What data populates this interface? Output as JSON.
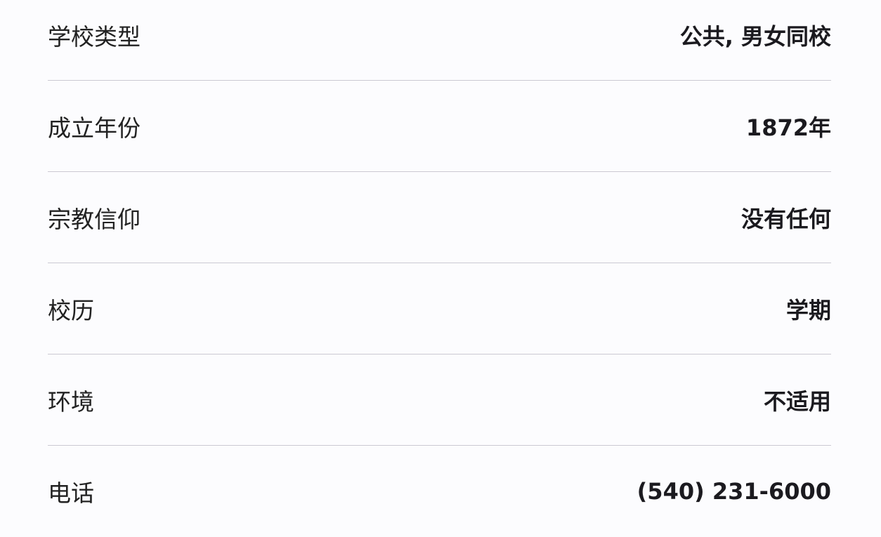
{
  "rows": [
    {
      "label": "学校类型",
      "value": "公共, 男女同校"
    },
    {
      "label": "成立年份",
      "value": "1872年"
    },
    {
      "label": "宗教信仰",
      "value": "没有任何"
    },
    {
      "label": "校历",
      "value": "学期"
    },
    {
      "label": "环境",
      "value": "不适用"
    },
    {
      "label": "电话",
      "value": "(540) 231-6000"
    }
  ]
}
